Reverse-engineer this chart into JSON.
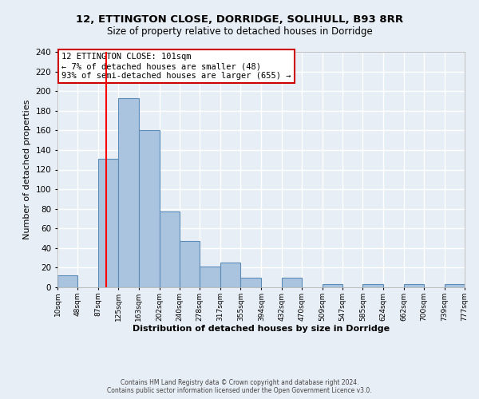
{
  "title_line1": "12, ETTINGTON CLOSE, DORRIDGE, SOLIHULL, B93 8RR",
  "title_line2": "Size of property relative to detached houses in Dorridge",
  "xlabel": "Distribution of detached houses by size in Dorridge",
  "ylabel": "Number of detached properties",
  "bin_edges": [
    10,
    48,
    87,
    125,
    163,
    202,
    240,
    278,
    317,
    355,
    394,
    432,
    470,
    509,
    547,
    585,
    624,
    662,
    700,
    739,
    777
  ],
  "bar_heights": [
    12,
    0,
    131,
    193,
    160,
    77,
    47,
    21,
    25,
    10,
    0,
    10,
    0,
    3,
    0,
    3,
    0,
    3,
    0,
    3
  ],
  "bar_color": "#aac4e0",
  "bar_edge_color": "#5b8db8",
  "property_line_x": 101,
  "property_line_color": "red",
  "ylim": [
    0,
    240
  ],
  "yticks": [
    0,
    20,
    40,
    60,
    80,
    100,
    120,
    140,
    160,
    180,
    200,
    220,
    240
  ],
  "annotation_title": "12 ETTINGTON CLOSE: 101sqm",
  "annotation_line1": "← 7% of detached houses are smaller (48)",
  "annotation_line2": "93% of semi-detached houses are larger (655) →",
  "annotation_box_color": "white",
  "annotation_box_edge": "#cc0000",
  "footer_line1": "Contains HM Land Registry data © Crown copyright and database right 2024.",
  "footer_line2": "Contains public sector information licensed under the Open Government Licence v3.0.",
  "background_color": "#e8eef5",
  "plot_background": "#e8eef5",
  "grid_color": "white",
  "tick_labels": [
    "10sqm",
    "48sqm",
    "87sqm",
    "125sqm",
    "163sqm",
    "202sqm",
    "240sqm",
    "278sqm",
    "317sqm",
    "355sqm",
    "394sqm",
    "432sqm",
    "470sqm",
    "509sqm",
    "547sqm",
    "585sqm",
    "624sqm",
    "662sqm",
    "700sqm",
    "739sqm",
    "777sqm"
  ]
}
